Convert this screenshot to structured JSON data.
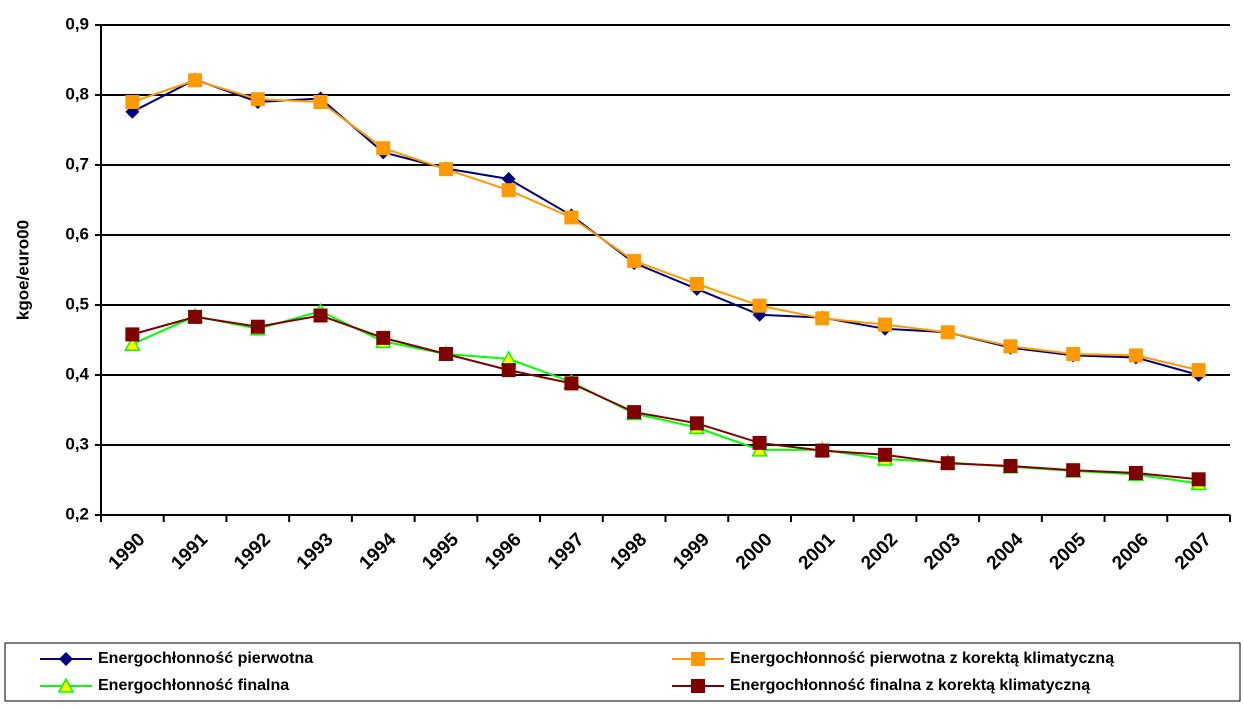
{
  "chart_data": {
    "type": "line",
    "y_label": "kgoe/euro00",
    "categories": [
      "1990",
      "1991",
      "1992",
      "1993",
      "1994",
      "1995",
      "1996",
      "1997",
      "1998",
      "1999",
      "2000",
      "2001",
      "2002",
      "2003",
      "2004",
      "2005",
      "2006",
      "2007"
    ],
    "series": [
      {
        "name": "Energochłonność pierwotna",
        "color": "#000080",
        "marker": "diamond",
        "values": [
          0.776,
          0.822,
          0.79,
          0.795,
          0.718,
          0.695,
          0.68,
          0.628,
          0.56,
          0.523,
          0.486,
          0.482,
          0.466,
          0.461,
          0.439,
          0.428,
          0.425,
          0.4
        ]
      },
      {
        "name": "Energochłonność pierwotna z korektą klimatyczną",
        "color": "#ff9900",
        "marker": "square",
        "values": [
          0.79,
          0.821,
          0.794,
          0.79,
          0.724,
          0.694,
          0.664,
          0.625,
          0.563,
          0.53,
          0.499,
          0.481,
          0.472,
          0.461,
          0.441,
          0.43,
          0.428,
          0.407
        ]
      },
      {
        "name": "Energochłonność finalna",
        "color": "#00ff00",
        "marker": "triangle",
        "values": [
          0.444,
          0.484,
          0.466,
          0.491,
          0.448,
          0.43,
          0.423,
          0.39,
          0.345,
          0.325,
          0.293,
          0.293,
          0.28,
          0.275,
          0.269,
          0.263,
          0.258,
          0.245
        ]
      },
      {
        "name": "Energochłonność finalna z korektą klimatyczną",
        "color": "#800000",
        "marker": "square",
        "values": [
          0.458,
          0.483,
          0.469,
          0.485,
          0.453,
          0.43,
          0.407,
          0.388,
          0.347,
          0.331,
          0.303,
          0.292,
          0.286,
          0.274,
          0.27,
          0.264,
          0.26,
          0.251
        ]
      }
    ],
    "ylim": [
      0.2,
      0.9
    ],
    "yticks": [
      {
        "value": 0.2,
        "label": "0,2"
      },
      {
        "value": 0.3,
        "label": "0,3"
      },
      {
        "value": 0.4,
        "label": "0,4"
      },
      {
        "value": 0.5,
        "label": "0,5"
      },
      {
        "value": 0.6,
        "label": "0,6"
      },
      {
        "value": 0.7,
        "label": "0,7"
      },
      {
        "value": 0.8,
        "label": "0,8"
      },
      {
        "value": 0.9,
        "label": "0,9"
      }
    ],
    "grid": true
  }
}
